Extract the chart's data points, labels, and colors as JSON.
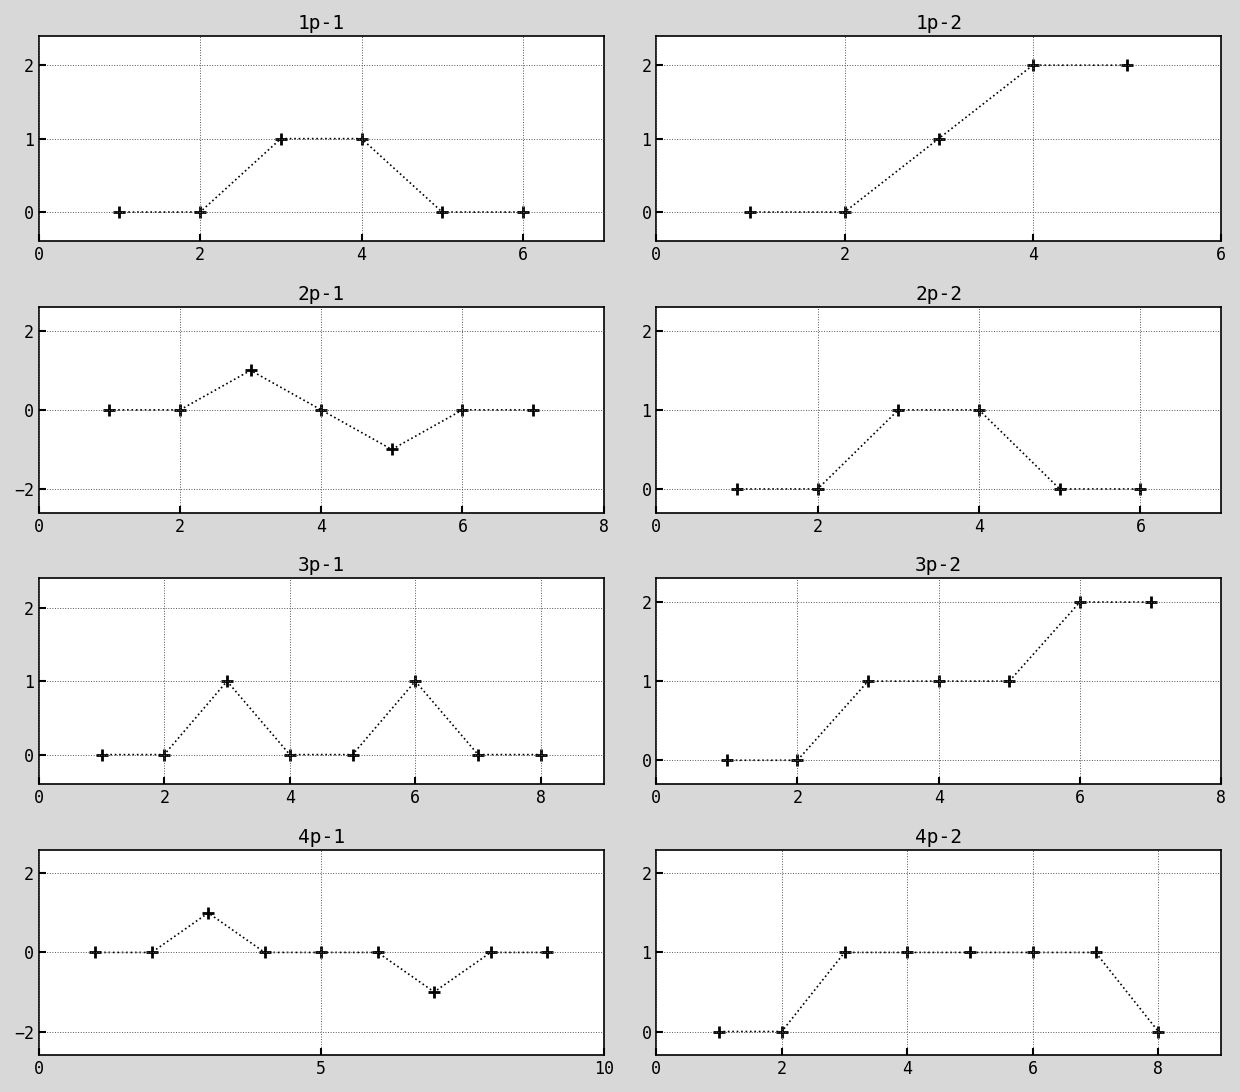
{
  "subplots": [
    {
      "title": "1p-1",
      "x": [
        1,
        2,
        3,
        4,
        5,
        6
      ],
      "y": [
        0,
        0,
        1,
        1,
        0,
        0
      ],
      "xlim": [
        0,
        7
      ],
      "ylim": [
        -0.4,
        2.4
      ],
      "xticks": [
        0,
        2,
        4,
        6
      ],
      "yticks": [
        0,
        1,
        2
      ],
      "row": 0,
      "col": 0
    },
    {
      "title": "1p-2",
      "x": [
        1,
        2,
        3,
        4,
        5
      ],
      "y": [
        0,
        0,
        1,
        2,
        2
      ],
      "xlim": [
        0,
        6
      ],
      "ylim": [
        -0.4,
        2.4
      ],
      "xticks": [
        0,
        2,
        4,
        6
      ],
      "yticks": [
        0,
        1,
        2
      ],
      "row": 0,
      "col": 1
    },
    {
      "title": "2p-1",
      "x": [
        1,
        2,
        3,
        4,
        5,
        6,
        7
      ],
      "y": [
        0,
        0,
        1,
        0,
        -1,
        0,
        0
      ],
      "xlim": [
        0,
        8
      ],
      "ylim": [
        -2.6,
        2.6
      ],
      "xticks": [
        0,
        2,
        4,
        6,
        8
      ],
      "yticks": [
        -2,
        0,
        2
      ],
      "row": 1,
      "col": 0
    },
    {
      "title": "2p-2",
      "x": [
        1,
        2,
        3,
        4,
        5,
        6
      ],
      "y": [
        0,
        0,
        1,
        1,
        0,
        0
      ],
      "xlim": [
        0,
        7
      ],
      "ylim": [
        -0.3,
        2.3
      ],
      "xticks": [
        0,
        2,
        4,
        6
      ],
      "yticks": [
        0,
        1,
        2
      ],
      "row": 1,
      "col": 1
    },
    {
      "title": "3p-1",
      "x": [
        1,
        2,
        3,
        4,
        5,
        6,
        7,
        8
      ],
      "y": [
        0,
        0,
        1,
        0,
        0,
        1,
        0,
        0
      ],
      "xlim": [
        0,
        9
      ],
      "ylim": [
        -0.4,
        2.4
      ],
      "xticks": [
        0,
        2,
        4,
        6,
        8
      ],
      "yticks": [
        0,
        1,
        2
      ],
      "row": 2,
      "col": 0
    },
    {
      "title": "3p-2",
      "x": [
        1,
        2,
        3,
        4,
        5,
        6,
        7
      ],
      "y": [
        0,
        0,
        1,
        1,
        1,
        2,
        2
      ],
      "xlim": [
        0,
        8
      ],
      "ylim": [
        -0.3,
        2.3
      ],
      "xticks": [
        0,
        2,
        4,
        6,
        8
      ],
      "yticks": [
        0,
        1,
        2
      ],
      "row": 2,
      "col": 1
    },
    {
      "title": "4p-1",
      "x": [
        1,
        2,
        3,
        4,
        5,
        6,
        7,
        8,
        9
      ],
      "y": [
        0,
        0,
        1,
        0,
        0,
        0,
        -1,
        0,
        0
      ],
      "xlim": [
        0,
        10
      ],
      "ylim": [
        -2.6,
        2.6
      ],
      "xticks": [
        0,
        5,
        10
      ],
      "yticks": [
        -2,
        0,
        2
      ],
      "row": 3,
      "col": 0
    },
    {
      "title": "4p-2",
      "x": [
        1,
        2,
        3,
        4,
        5,
        6,
        7,
        8
      ],
      "y": [
        0,
        0,
        1,
        1,
        1,
        1,
        1,
        0
      ],
      "xlim": [
        0,
        9
      ],
      "ylim": [
        -0.3,
        2.3
      ],
      "xticks": [
        0,
        2,
        4,
        6,
        8
      ],
      "yticks": [
        0,
        1,
        2
      ],
      "row": 3,
      "col": 1
    }
  ],
  "fig_bg": "#d8d8d8",
  "ax_bg": "#ffffff",
  "line_color": "#000000",
  "line_style": ":",
  "marker": "+",
  "markersize": 9,
  "markeredgewidth": 2.0,
  "linewidth": 1.2,
  "grid_color": "#555555",
  "grid_style": ":",
  "grid_linewidth": 0.7,
  "title_fontsize": 14,
  "tick_fontsize": 12,
  "fig_width": 12.4,
  "fig_height": 10.92,
  "dpi": 100
}
